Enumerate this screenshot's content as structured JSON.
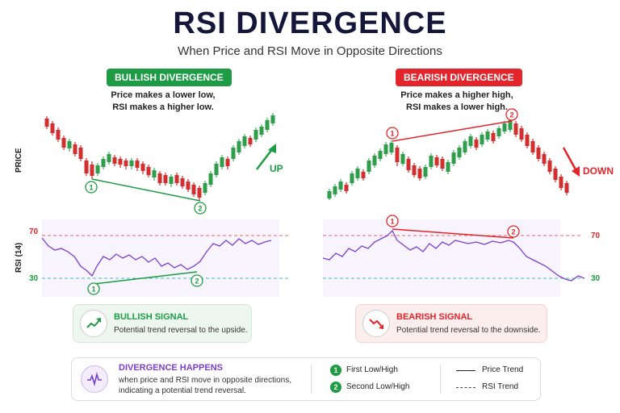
{
  "header": {
    "title": "RSI DIVERGENCE",
    "subtitle": "When Price and RSI Move in Opposite Directions"
  },
  "bullish": {
    "tag": "BULLISH DIVERGENCE",
    "desc_line1": "Price makes a lower low,",
    "desc_line2": "RSI makes a higher low.",
    "trend_label": "UP",
    "color": "#1e9b45"
  },
  "bearish": {
    "tag": "BEARISH DIVERGENCE",
    "desc_line1": "Price makes a higher high,",
    "desc_line2": "RSI makes a lower high.",
    "trend_label": "DOWN",
    "color": "#e3242b"
  },
  "axes": {
    "price_label": "PRICE",
    "rsi_label": "RSI (14)",
    "rsi_level_high": "70",
    "rsi_level_low": "30"
  },
  "markers": {
    "first": "1",
    "second": "2"
  },
  "signals": {
    "bullish_head": "BULLISH SIGNAL",
    "bullish_sub": "Potential trend reversal to the upside.",
    "bearish_head": "BEARISH SIGNAL",
    "bearish_sub": "Potential trend reversal to the downside."
  },
  "legend": {
    "head": "DIVERGENCE HAPPENS",
    "sub_line1": "when price and RSI move in opposite directions,",
    "sub_line2": "indicating a potential trend reversal.",
    "first_label": "First Low/High",
    "second_label": "Second Low/High",
    "price_trend": "Price Trend",
    "rsi_trend": "RSI Trend"
  },
  "colors": {
    "green": "#1e9b45",
    "red": "#e3242b",
    "purple": "#7b3fcf",
    "navy": "#14163a"
  }
}
